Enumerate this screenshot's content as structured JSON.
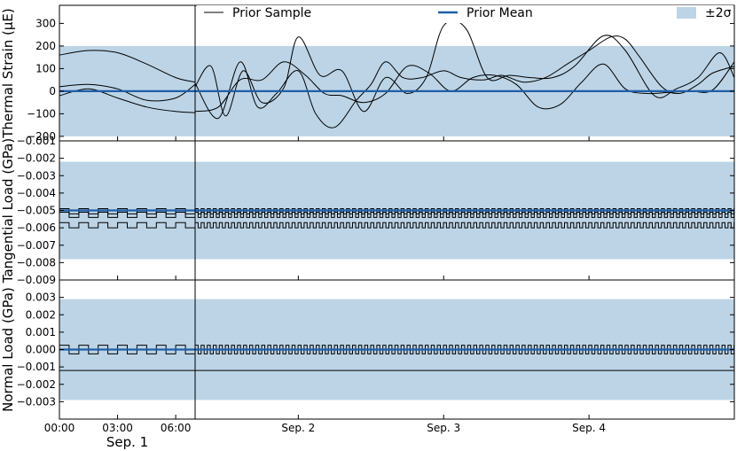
{
  "chart_data": {
    "type": "line",
    "layout": "three stacked panels sharing a time axis; first day (Sep. 1, 00:00 to ~07:00) drawn in a separate narrow left sub-panel",
    "legend": {
      "placement": "top",
      "entries": [
        {
          "label": "Prior Sample",
          "style": "thin black line"
        },
        {
          "label": "Prior Mean",
          "style": "thick blue line"
        },
        {
          "label": "±2σ",
          "style": "light blue band"
        }
      ]
    },
    "colors": {
      "band": "#bcd4e6",
      "mean": "#1f5ea8",
      "sample": "#000000"
    },
    "x_axis": {
      "zoom_ticks": [
        "00:00",
        "03:00",
        "06:00"
      ],
      "zoom_tick_hours": [
        0,
        3,
        6
      ],
      "zoom_range_hours": [
        0,
        7
      ],
      "zoom_day_label": "Sep. 1",
      "main_ticks": [
        "Sep. 2",
        "Sep. 3",
        "Sep. 4"
      ],
      "main_tick_days": [
        2,
        3,
        4
      ],
      "main_range_days": [
        1.29,
        5.0
      ]
    },
    "panels": [
      {
        "ylabel": "Thermal Strain (μE)",
        "ylim": [
          -220,
          380
        ],
        "yticks": [
          -200,
          -100,
          0,
          100,
          200,
          300
        ],
        "ytick_labels": [
          "−200",
          "−100",
          "0",
          "100",
          "200",
          "300"
        ],
        "band": [
          -200,
          200
        ],
        "mean": 0,
        "samples": [
          {
            "zoom": [
              [
                0,
                160
              ],
              [
                1.5,
                180
              ],
              [
                3,
                170
              ],
              [
                4.5,
                120
              ],
              [
                6,
                60
              ],
              [
                7,
                40
              ]
            ],
            "main": [
              [
                1.29,
                20
              ],
              [
                1.4,
                110
              ],
              [
                1.5,
                -110
              ],
              [
                1.62,
                90
              ],
              [
                1.75,
                -50
              ],
              [
                1.9,
                15
              ],
              [
                2.0,
                240
              ],
              [
                2.15,
                70
              ],
              [
                2.3,
                90
              ],
              [
                2.45,
                -90
              ],
              [
                2.6,
                60
              ],
              [
                2.75,
                -10
              ],
              [
                2.88,
                60
              ],
              [
                3.0,
                290
              ],
              [
                3.15,
                280
              ],
              [
                3.3,
                60
              ],
              [
                3.45,
                70
              ],
              [
                3.6,
                60
              ],
              [
                3.75,
                60
              ],
              [
                3.9,
                110
              ],
              [
                4.1,
                245
              ],
              [
                4.25,
                180
              ],
              [
                4.45,
                -20
              ],
              [
                4.6,
                10
              ],
              [
                4.75,
                60
              ],
              [
                4.9,
                170
              ],
              [
                5.0,
                60
              ]
            ]
          },
          {
            "zoom": [
              [
                0,
                20
              ],
              [
                1.5,
                30
              ],
              [
                3,
                10
              ],
              [
                4.5,
                -40
              ],
              [
                6,
                -30
              ],
              [
                7,
                30
              ]
            ],
            "main": [
              [
                1.29,
                35
              ],
              [
                1.45,
                -120
              ],
              [
                1.6,
                130
              ],
              [
                1.72,
                -70
              ],
              [
                1.85,
                -10
              ],
              [
                2.0,
                90
              ],
              [
                2.12,
                -100
              ],
              [
                2.25,
                -160
              ],
              [
                2.4,
                -40
              ],
              [
                2.5,
                30
              ],
              [
                2.6,
                130
              ],
              [
                2.72,
                60
              ],
              [
                2.85,
                60
              ],
              [
                3.0,
                90
              ],
              [
                3.12,
                60
              ],
              [
                3.28,
                50
              ],
              [
                3.4,
                70
              ],
              [
                3.55,
                40
              ],
              [
                3.7,
                60
              ],
              [
                3.85,
                120
              ],
              [
                4.0,
                180
              ],
              [
                4.15,
                240
              ],
              [
                4.25,
                230
              ],
              [
                4.35,
                150
              ],
              [
                4.5,
                20
              ],
              [
                4.62,
                -10
              ],
              [
                4.75,
                30
              ],
              [
                4.85,
                80
              ],
              [
                5.0,
                110
              ]
            ]
          },
          {
            "zoom": [
              [
                0,
                -20
              ],
              [
                1.5,
                10
              ],
              [
                3,
                -30
              ],
              [
                4.5,
                -70
              ],
              [
                6,
                -90
              ],
              [
                7,
                -95
              ]
            ],
            "main": [
              [
                1.29,
                -90
              ],
              [
                1.45,
                -70
              ],
              [
                1.6,
                50
              ],
              [
                1.75,
                50
              ],
              [
                1.9,
                130
              ],
              [
                2.05,
                70
              ],
              [
                2.18,
                -10
              ],
              [
                2.3,
                -20
              ],
              [
                2.45,
                -50
              ],
              [
                2.6,
                -10
              ],
              [
                2.75,
                110
              ],
              [
                2.9,
                80
              ],
              [
                3.05,
                0
              ],
              [
                3.2,
                60
              ],
              [
                3.35,
                70
              ],
              [
                3.5,
                30
              ],
              [
                3.65,
                -70
              ],
              [
                3.8,
                -60
              ],
              [
                3.95,
                40
              ],
              [
                4.1,
                120
              ],
              [
                4.25,
                10
              ],
              [
                4.4,
                -10
              ],
              [
                4.55,
                -5
              ],
              [
                4.7,
                0
              ],
              [
                4.85,
                5
              ],
              [
                5.0,
                130
              ]
            ]
          }
        ]
      },
      {
        "ylabel": "Tangential Load (GPa)",
        "ylim": [
          -0.009,
          -0.001
        ],
        "yticks": [
          -0.009,
          -0.008,
          -0.007,
          -0.006,
          -0.005,
          -0.004,
          -0.003,
          -0.002,
          -0.001
        ],
        "ytick_labels": [
          "−0.009",
          "−0.008",
          "−0.007",
          "−0.006",
          "−0.005",
          "−0.004",
          "−0.003",
          "−0.002",
          "−0.001"
        ],
        "band": [
          -0.0078,
          -0.0022
        ],
        "mean": -0.005,
        "samples": [
          {
            "square_wave": {
              "low": -0.0052,
              "high": -0.0049,
              "cycles_per_day": 24
            }
          },
          {
            "square_wave": {
              "low": -0.0054,
              "high": -0.0051,
              "cycles_per_day": 24
            }
          },
          {
            "square_wave": {
              "low": -0.006,
              "high": -0.0057,
              "cycles_per_day": 24
            }
          }
        ]
      },
      {
        "ylabel": "Normal Load (GPa)",
        "ylim": [
          -0.004,
          0.004
        ],
        "yticks": [
          -0.003,
          -0.002,
          -0.001,
          0.0,
          0.001,
          0.002,
          0.003
        ],
        "ytick_labels": [
          "−0.003",
          "−0.002",
          "−0.001",
          "0.000",
          "0.001",
          "0.002",
          "0.003"
        ],
        "band": [
          -0.0029,
          0.0029
        ],
        "mean": 0.0,
        "samples": [
          {
            "square_wave": {
              "low": 0.0,
              "high": 0.00025,
              "cycles_per_day": 24
            }
          },
          {
            "square_wave": {
              "low": -0.00025,
              "high": 0.0,
              "cycles_per_day": 24
            }
          },
          {
            "constant": -0.0012
          }
        ]
      }
    ]
  }
}
